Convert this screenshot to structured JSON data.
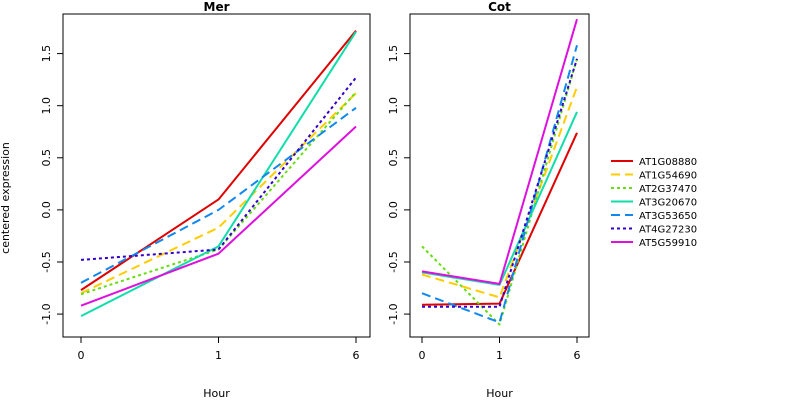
{
  "chart_data": {
    "type": "line",
    "ylabel": "centered expression",
    "panels": [
      {
        "title": "Mer",
        "xlabel": "Hour",
        "x_categories": [
          "0",
          "1",
          "6"
        ],
        "ylim": [
          -1.22,
          1.88
        ],
        "y_ticks": [
          -1.0,
          -0.5,
          0.0,
          0.5,
          1.0,
          1.5
        ],
        "y_tick_labels": [
          "-1.0",
          "-0.5",
          "0.0",
          "0.5",
          "1.0",
          "1.5"
        ],
        "series": [
          {
            "name": "AT1G08880",
            "values": [
              -0.77,
              0.1,
              1.72
            ]
          },
          {
            "name": "AT1G54690",
            "values": [
              -0.8,
              -0.17,
              1.12
            ]
          },
          {
            "name": "AT2G37470",
            "values": [
              -0.81,
              -0.38,
              1.13
            ]
          },
          {
            "name": "AT3G20670",
            "values": [
              -1.02,
              -0.35,
              1.71
            ]
          },
          {
            "name": "AT3G53650",
            "values": [
              -0.7,
              0.0,
              0.98
            ]
          },
          {
            "name": "AT4G27230",
            "values": [
              -0.48,
              -0.38,
              1.27
            ]
          },
          {
            "name": "AT5G59910",
            "values": [
              -0.92,
              -0.42,
              0.8
            ]
          }
        ]
      },
      {
        "title": "Cot",
        "xlabel": "Hour",
        "x_categories": [
          "0",
          "1",
          "6"
        ],
        "ylim": [
          -1.22,
          1.88
        ],
        "y_ticks": [
          -1.0,
          -0.5,
          0.0,
          0.5,
          1.0,
          1.5
        ],
        "y_tick_labels": [
          "-1.0",
          "-0.5",
          "0.0",
          "0.5",
          "1.0",
          "1.5"
        ],
        "series": [
          {
            "name": "AT1G08880",
            "values": [
              -0.91,
              -0.9,
              0.74
            ]
          },
          {
            "name": "AT1G54690",
            "values": [
              -0.62,
              -0.84,
              1.18
            ]
          },
          {
            "name": "AT2G37470",
            "values": [
              -0.35,
              -1.1,
              1.45
            ]
          },
          {
            "name": "AT3G20670",
            "values": [
              -0.6,
              -0.72,
              0.94
            ]
          },
          {
            "name": "AT3G53650",
            "values": [
              -0.8,
              -1.08,
              1.58
            ]
          },
          {
            "name": "AT4G27230",
            "values": [
              -0.93,
              -0.93,
              1.45
            ]
          },
          {
            "name": "AT5G59910",
            "values": [
              -0.59,
              -0.71,
              1.83
            ]
          }
        ]
      }
    ],
    "legend": {
      "placement": "right",
      "entries": [
        {
          "name": "AT1G08880",
          "color": "#DF0000",
          "dash": "solid"
        },
        {
          "name": "AT1G54690",
          "color": "#FFCC00",
          "dash": "long-dash"
        },
        {
          "name": "AT2G37470",
          "color": "#66DD11",
          "dash": "dotted"
        },
        {
          "name": "AT3G20670",
          "color": "#11DDAA",
          "dash": "solid"
        },
        {
          "name": "AT3G53650",
          "color": "#1188EE",
          "dash": "long-dash"
        },
        {
          "name": "AT4G27230",
          "color": "#3300CC",
          "dash": "dotted"
        },
        {
          "name": "AT5G59910",
          "color": "#DD11DD",
          "dash": "solid"
        }
      ]
    },
    "grid": false
  }
}
